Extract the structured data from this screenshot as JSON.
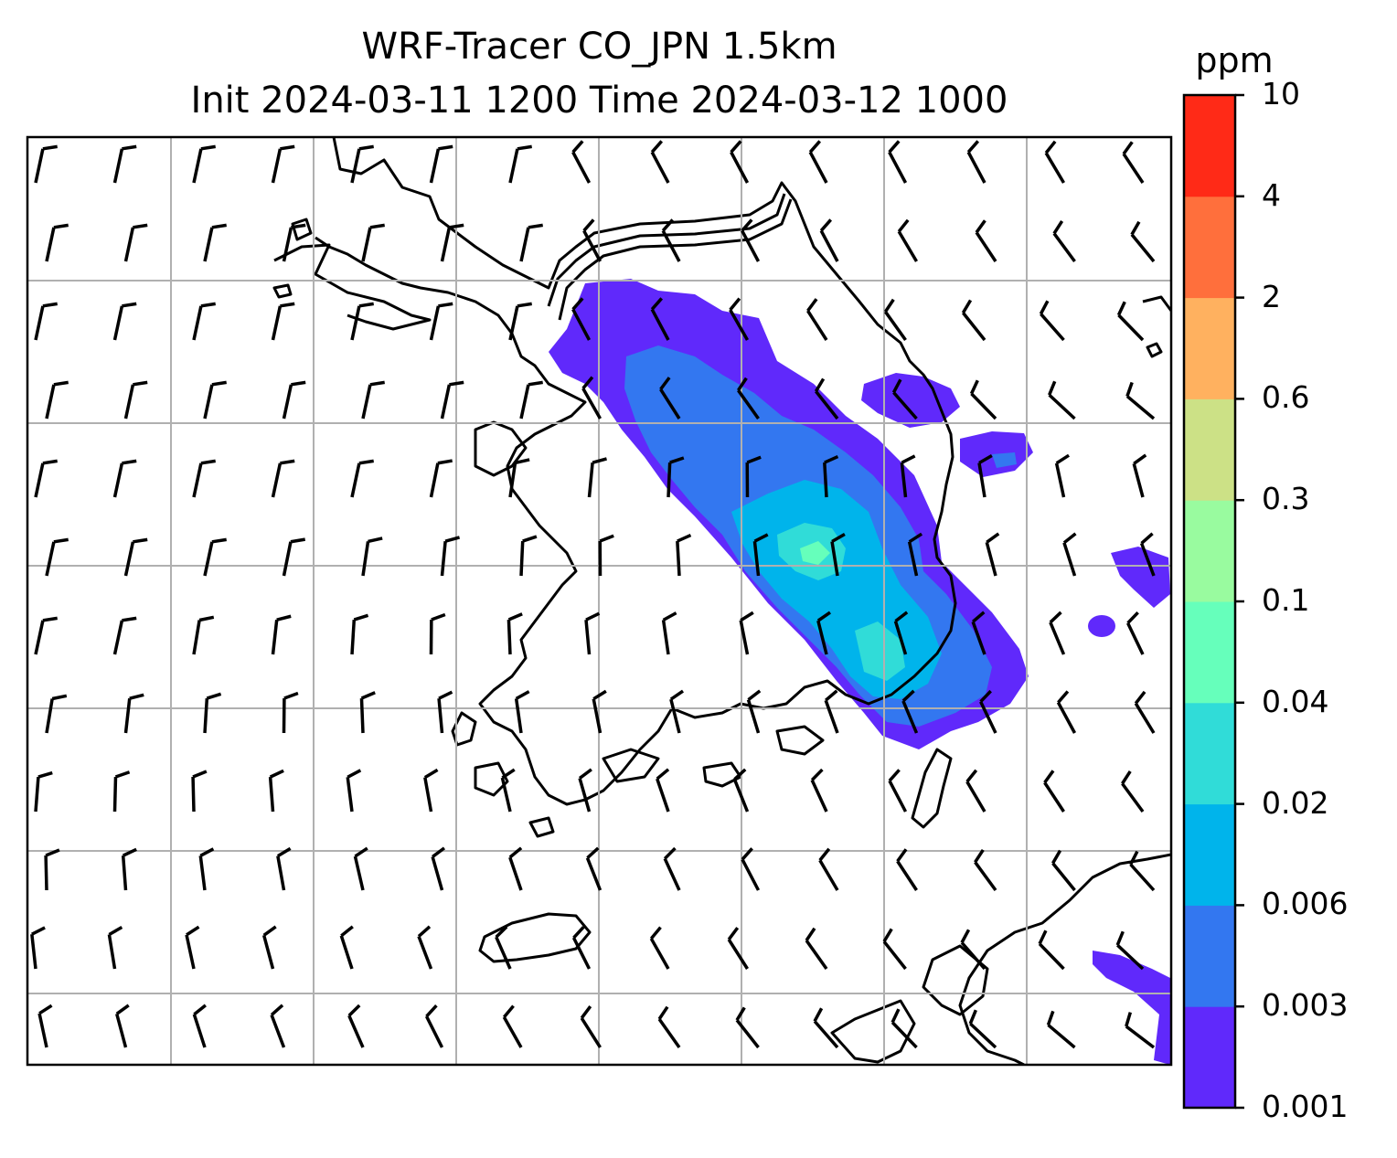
{
  "title": {
    "line1": "WRF-Tracer CO_JPN 1.5km",
    "line2": "Init 2024-03-11 1200 Time 2024-03-12 1000"
  },
  "colorbar": {
    "unit": "ppm",
    "levels": [
      "0.001",
      "0.003",
      "0.006",
      "0.02",
      "0.04",
      "0.1",
      "0.3",
      "0.6",
      "2",
      "4",
      "10"
    ],
    "colors": [
      "#6029fb",
      "#3377f0",
      "#00b4eb",
      "#30dcd8",
      "#66ffbb",
      "#99fb9f",
      "#cce186",
      "#ffb15f",
      "#ff6f3c",
      "#ff2a17"
    ]
  },
  "map_style": {
    "gridline_color": "#b0b0b0",
    "coastline_color": "#000000",
    "wind_barb_color": "#000000"
  }
}
